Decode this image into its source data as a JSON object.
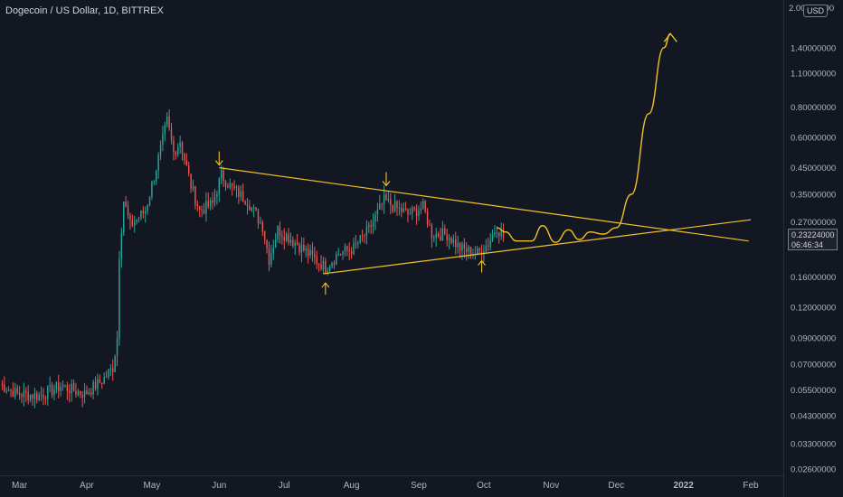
{
  "chart_data": {
    "type": "candlestick",
    "title": "Dogecoin / US Dollar, 1D, BITTREX",
    "y_scale": "log",
    "ylim": [
      0.0245,
      2.2
    ],
    "y_ticks": [
      {
        "label": "2.00000000",
        "value": 2.0
      },
      {
        "label": "1.40000000",
        "value": 1.4
      },
      {
        "label": "1.10000000",
        "value": 1.1
      },
      {
        "label": "0.80000000",
        "value": 0.8
      },
      {
        "label": "0.60000000",
        "value": 0.6
      },
      {
        "label": "0.45000000",
        "value": 0.45
      },
      {
        "label": "0.35000000",
        "value": 0.35
      },
      {
        "label": "0.27000000",
        "value": 0.27
      },
      {
        "label": "0.16000000",
        "value": 0.16
      },
      {
        "label": "0.12000000",
        "value": 0.12
      },
      {
        "label": "0.09000000",
        "value": 0.09
      },
      {
        "label": "0.07000000",
        "value": 0.07
      },
      {
        "label": "0.05500000",
        "value": 0.055
      },
      {
        "label": "0.04300000",
        "value": 0.043
      },
      {
        "label": "0.03300000",
        "value": 0.033
      },
      {
        "label": "0.02600000",
        "value": 0.026
      }
    ],
    "x_ticks": [
      {
        "label": "Mar",
        "date": "2021-03-01"
      },
      {
        "label": "Apr",
        "date": "2021-04-01"
      },
      {
        "label": "May",
        "date": "2021-05-01"
      },
      {
        "label": "Jun",
        "date": "2021-06-01"
      },
      {
        "label": "Jul",
        "date": "2021-07-01"
      },
      {
        "label": "Aug",
        "date": "2021-08-01"
      },
      {
        "label": "Sep",
        "date": "2021-09-01"
      },
      {
        "label": "Oct",
        "date": "2021-10-01"
      },
      {
        "label": "Nov",
        "date": "2021-11-01"
      },
      {
        "label": "Dec",
        "date": "2021-12-01"
      },
      {
        "label": "2022",
        "date": "2022-01-01",
        "bold": true
      },
      {
        "label": "Feb",
        "date": "2022-02-01"
      }
    ],
    "xlim": [
      "2021-02-20",
      "2022-02-16"
    ],
    "current_price": "0.23224000",
    "countdown": "06:46:34",
    "currency": "USD",
    "colors": {
      "up": "#26a69a",
      "down": "#ef5350",
      "drawing": "#f2c029",
      "background": "#131722",
      "text": "#b2b5be"
    },
    "anchors": [
      [
        "2021-02-20",
        0.058
      ],
      [
        "2021-02-28",
        0.053
      ],
      [
        "2021-03-10",
        0.052
      ],
      [
        "2021-03-20",
        0.057
      ],
      [
        "2021-03-31",
        0.053
      ],
      [
        "2021-04-08",
        0.06
      ],
      [
        "2021-04-13",
        0.068
      ],
      [
        "2021-04-15",
        0.09
      ],
      [
        "2021-04-16",
        0.2
      ],
      [
        "2021-04-18",
        0.33
      ],
      [
        "2021-04-21",
        0.26
      ],
      [
        "2021-04-28",
        0.3
      ],
      [
        "2021-05-03",
        0.45
      ],
      [
        "2021-05-08",
        0.7
      ],
      [
        "2021-05-11",
        0.52
      ],
      [
        "2021-05-14",
        0.58
      ],
      [
        "2021-05-19",
        0.38
      ],
      [
        "2021-05-23",
        0.3
      ],
      [
        "2021-05-29",
        0.32
      ],
      [
        "2021-06-02",
        0.42
      ],
      [
        "2021-06-07",
        0.37
      ],
      [
        "2021-06-14",
        0.33
      ],
      [
        "2021-06-21",
        0.26
      ],
      [
        "2021-06-24",
        0.19
      ],
      [
        "2021-06-28",
        0.25
      ],
      [
        "2021-07-04",
        0.23
      ],
      [
        "2021-07-12",
        0.2
      ],
      [
        "2021-07-20",
        0.175
      ],
      [
        "2021-07-26",
        0.2
      ],
      [
        "2021-08-02",
        0.21
      ],
      [
        "2021-08-09",
        0.25
      ],
      [
        "2021-08-16",
        0.33
      ],
      [
        "2021-08-21",
        0.31
      ],
      [
        "2021-08-27",
        0.29
      ],
      [
        "2021-09-03",
        0.31
      ],
      [
        "2021-09-07",
        0.24
      ],
      [
        "2021-09-14",
        0.24
      ],
      [
        "2021-09-20",
        0.21
      ],
      [
        "2021-09-28",
        0.2
      ],
      [
        "2021-10-03",
        0.22
      ],
      [
        "2021-10-07",
        0.258
      ],
      [
        "2021-10-10",
        0.232
      ]
    ],
    "trendlines": [
      {
        "name": "resistance",
        "from": [
          "2021-06-01",
          0.45
        ],
        "to": [
          "2022-01-31",
          0.225
        ]
      },
      {
        "name": "support",
        "from": [
          "2021-07-19",
          0.165
        ],
        "to": [
          "2022-02-01",
          0.275
        ]
      }
    ],
    "arrows": [
      {
        "direction": "down",
        "date": "2021-06-01",
        "value": 0.45
      },
      {
        "direction": "down",
        "date": "2021-08-17",
        "value": 0.37
      },
      {
        "direction": "up",
        "date": "2021-07-20",
        "value": 0.15
      },
      {
        "direction": "up",
        "date": "2021-09-30",
        "value": 0.185
      }
    ],
    "projection": [
      [
        "2021-10-07",
        0.255
      ],
      [
        "2021-10-11",
        0.245
      ],
      [
        "2021-10-16",
        0.225
      ],
      [
        "2021-10-23",
        0.225
      ],
      [
        "2021-10-28",
        0.26
      ],
      [
        "2021-11-03",
        0.222
      ],
      [
        "2021-11-09",
        0.25
      ],
      [
        "2021-11-14",
        0.228
      ],
      [
        "2021-11-19",
        0.245
      ],
      [
        "2021-11-25",
        0.24
      ],
      [
        "2021-12-01",
        0.255
      ],
      [
        "2021-12-08",
        0.35
      ],
      [
        "2021-12-16",
        0.75
      ],
      [
        "2021-12-23",
        1.4
      ],
      [
        "2021-12-26",
        1.6
      ]
    ]
  }
}
